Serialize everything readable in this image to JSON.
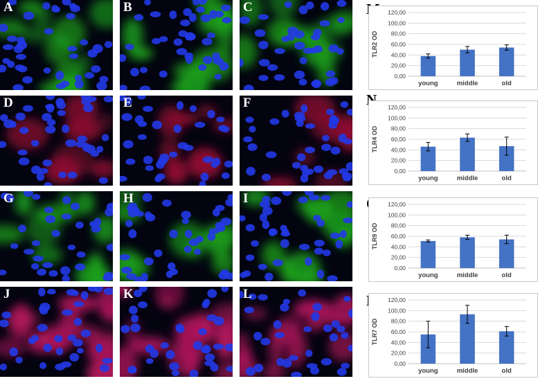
{
  "panels": [
    {
      "label": "A",
      "stain": "green"
    },
    {
      "label": "B",
      "stain": "green"
    },
    {
      "label": "C",
      "stain": "green"
    },
    {
      "label": "D",
      "stain": "red"
    },
    {
      "label": "E",
      "stain": "red"
    },
    {
      "label": "F",
      "stain": "red"
    },
    {
      "label": "G",
      "stain": "green"
    },
    {
      "label": "H",
      "stain": "green"
    },
    {
      "label": "I",
      "stain": "green"
    },
    {
      "label": "J",
      "stain": "magenta"
    },
    {
      "label": "K",
      "stain": "magenta"
    },
    {
      "label": "L",
      "stain": "magenta"
    }
  ],
  "stain_colors": {
    "green": "#22c21e",
    "red": "#b0123a",
    "magenta": "#d01a6a",
    "nucleus": "#2238e6",
    "background": "#030410"
  },
  "chart_labels": [
    "M",
    "N",
    "O",
    "P"
  ],
  "chart_data": [
    {
      "type": "bar",
      "categories": [
        "young",
        "middle",
        "old"
      ],
      "values": [
        38,
        50,
        54
      ],
      "errors": [
        4,
        6,
        5
      ],
      "ylabel": "TLR2 OD",
      "ylim": [
        0,
        120
      ],
      "ticks": [
        "0,00",
        "20,00",
        "40,00",
        "60,00",
        "80,00",
        "100,00",
        "120,00"
      ],
      "bar_color": "#4472c4",
      "grid": true
    },
    {
      "type": "bar",
      "categories": [
        "young",
        "middle",
        "old"
      ],
      "values": [
        46,
        63,
        47
      ],
      "errors": [
        8,
        7,
        17
      ],
      "ylabel": "TLR4 OD",
      "ylim": [
        0,
        120
      ],
      "ticks": [
        "0,00",
        "20,00",
        "40,00",
        "60,00",
        "80,00",
        "100,00",
        "120,00"
      ],
      "bar_color": "#4472c4",
      "grid": true
    },
    {
      "type": "bar",
      "categories": [
        "young",
        "middle",
        "old"
      ],
      "values": [
        51,
        58,
        54
      ],
      "errors": [
        2,
        4,
        8
      ],
      "ylabel": "TLR9 OD",
      "ylim": [
        0,
        120
      ],
      "ticks": [
        "0,00",
        "20,00",
        "40,00",
        "60,00",
        "80,00",
        "100,00",
        "120,00"
      ],
      "bar_color": "#4472c4",
      "grid": true
    },
    {
      "type": "bar",
      "categories": [
        "young",
        "middle",
        "old"
      ],
      "values": [
        55,
        93,
        61
      ],
      "errors": [
        25,
        17,
        9
      ],
      "ylabel": "TLR7 OD",
      "ylim": [
        0,
        120
      ],
      "ticks": [
        "0,00",
        "20,00",
        "40,00",
        "60,00",
        "80,00",
        "100,00",
        "120,00"
      ],
      "bar_color": "#4472c4",
      "grid": true
    }
  ]
}
